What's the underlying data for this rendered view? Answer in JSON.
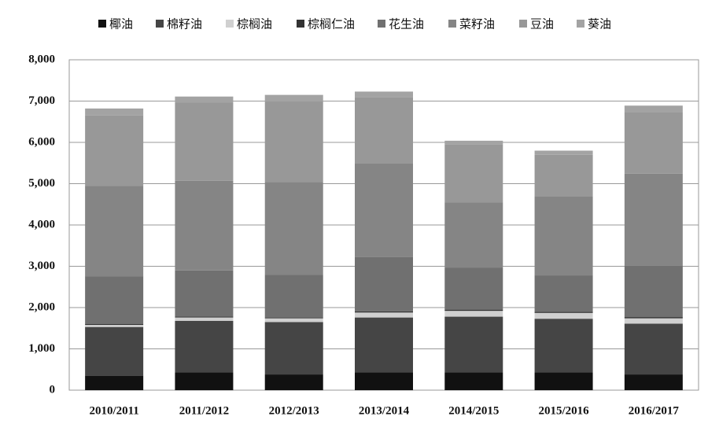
{
  "chart_data": {
    "type": "stacked_bar",
    "categories": [
      "2010/2011",
      "2011/2012",
      "2012/2013",
      "2013/2014",
      "2014/2015",
      "2015/2016",
      "2016/2017"
    ],
    "series": [
      {
        "name": "椰油",
        "color": "#111111",
        "values": [
          350,
          430,
          380,
          430,
          430,
          430,
          380
        ]
      },
      {
        "name": "棉籽油",
        "color": "#454545",
        "values": [
          1180,
          1250,
          1270,
          1330,
          1350,
          1300,
          1230
        ]
      },
      {
        "name": "棕榈油",
        "color": "#d0d0d0",
        "values": [
          50,
          80,
          90,
          120,
          140,
          140,
          130
        ]
      },
      {
        "name": "棕榈仁油",
        "color": "#333333",
        "values": [
          20,
          20,
          20,
          30,
          30,
          30,
          30
        ]
      },
      {
        "name": "花生油",
        "color": "#707070",
        "values": [
          1160,
          1120,
          1030,
          1310,
          1020,
          880,
          1240
        ]
      },
      {
        "name": "菜籽油",
        "color": "#858585",
        "values": [
          2190,
          2170,
          2250,
          2280,
          1580,
          1920,
          2230
        ]
      },
      {
        "name": "豆油",
        "color": "#989898",
        "values": [
          1700,
          1900,
          1950,
          1600,
          1400,
          1000,
          1500
        ]
      },
      {
        "name": "葵油",
        "color": "#a3a3a3",
        "values": [
          170,
          140,
          160,
          130,
          90,
          100,
          150
        ]
      }
    ],
    "ylim": [
      0,
      8000
    ],
    "yticks": [
      0,
      {
        "value": 1000,
        "label": "1,000"
      },
      {
        "value": 2000,
        "label": "2,000"
      },
      {
        "value": 3000,
        "label": "3,000"
      },
      {
        "value": 4000,
        "label": "4,000"
      },
      {
        "value": 5000,
        "label": "5,000"
      },
      {
        "value": 6000,
        "label": "6,000"
      },
      {
        "value": 7000,
        "label": "7,000"
      },
      {
        "value": 8000,
        "label": "8,000"
      }
    ],
    "grid": true,
    "legend": "top"
  }
}
